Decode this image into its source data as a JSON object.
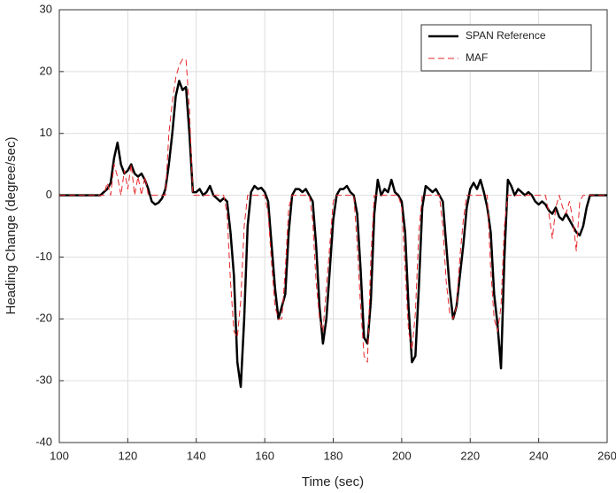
{
  "chart_data": {
    "type": "line",
    "xlabel": "Time (sec)",
    "ylabel": "Heading Change (degree/sec)",
    "xlim": [
      100,
      260
    ],
    "xticks": [
      100,
      120,
      140,
      160,
      180,
      200,
      220,
      240,
      260
    ],
    "ylim": [
      -40,
      30
    ],
    "yticks": [
      -40,
      -30,
      -20,
      -10,
      0,
      10,
      20,
      30
    ],
    "grid": true,
    "legend": "upper right",
    "x": [
      100,
      101,
      102,
      103,
      104,
      105,
      106,
      107,
      108,
      109,
      110,
      111,
      112,
      113,
      114,
      115,
      116,
      117,
      118,
      119,
      120,
      121,
      122,
      123,
      124,
      125,
      126,
      127,
      128,
      129,
      130,
      131,
      132,
      133,
      134,
      135,
      136,
      137,
      138,
      139,
      140,
      141,
      142,
      143,
      144,
      145,
      146,
      147,
      148,
      149,
      150,
      151,
      152,
      153,
      154,
      155,
      156,
      157,
      158,
      159,
      160,
      161,
      162,
      163,
      164,
      165,
      166,
      167,
      168,
      169,
      170,
      171,
      172,
      173,
      174,
      175,
      176,
      177,
      178,
      179,
      180,
      181,
      182,
      183,
      184,
      185,
      186,
      187,
      188,
      189,
      190,
      191,
      192,
      193,
      194,
      195,
      196,
      197,
      198,
      199,
      200,
      201,
      202,
      203,
      204,
      205,
      206,
      207,
      208,
      209,
      210,
      211,
      212,
      213,
      214,
      215,
      216,
      217,
      218,
      219,
      220,
      221,
      222,
      223,
      224,
      225,
      226,
      227,
      228,
      229,
      230,
      231,
      232,
      233,
      234,
      235,
      236,
      237,
      238,
      239,
      240,
      241,
      242,
      243,
      244,
      245,
      246,
      247,
      248,
      249,
      250,
      251,
      252,
      253,
      254,
      255,
      256,
      257,
      258,
      259,
      260
    ],
    "series": [
      {
        "name": "SPAN Reference",
        "color": "#000000",
        "linestyle": "solid",
        "width": 2.5,
        "values": [
          0,
          0,
          0,
          0,
          0,
          0,
          0,
          0,
          0,
          0,
          0,
          0,
          0,
          0.5,
          1,
          2,
          6,
          8.5,
          5,
          3.5,
          4,
          5,
          3.5,
          3,
          3.5,
          2.5,
          1,
          -1,
          -1.5,
          -1.2,
          -0.5,
          1,
          5,
          10,
          16,
          18.5,
          17,
          17.5,
          10,
          0.5,
          0.5,
          1,
          0,
          0.5,
          1.5,
          0,
          -0.5,
          -1,
          -0.5,
          -1,
          -6,
          -13,
          -27,
          -31,
          -20,
          -5,
          0.5,
          1.5,
          1,
          1.2,
          0.5,
          -1,
          -8,
          -15,
          -20,
          -18,
          -16,
          -6,
          0,
          1,
          1,
          0.5,
          1,
          0,
          -1,
          -8,
          -18,
          -24,
          -20,
          -12,
          -4,
          0,
          1,
          1,
          1.5,
          0.5,
          0,
          -3,
          -12,
          -23,
          -24,
          -17,
          -3,
          2.5,
          0,
          1,
          0.5,
          2.5,
          0.5,
          0,
          -1,
          -6,
          -18,
          -27,
          -26,
          -15,
          -2,
          1.5,
          1,
          0.5,
          1,
          0,
          -1,
          -8,
          -15,
          -20,
          -18,
          -13,
          -8,
          -2,
          1,
          2,
          1,
          2.5,
          0.5,
          -2,
          -6,
          -16,
          -21,
          -28,
          -10,
          2.5,
          1.5,
          0,
          1,
          0.5,
          0,
          0.5,
          0,
          -1,
          -1.5,
          -1,
          -1.5,
          -2.5,
          -3,
          -2,
          -3.5,
          -4,
          -3,
          -4,
          -5,
          -6,
          -6.5,
          -5,
          -2,
          0,
          0,
          0,
          0,
          0,
          0
        ]
      },
      {
        "name": "MAF",
        "color": "#e8262a",
        "linestyle": "dashed",
        "width": 1,
        "values": [
          0,
          0,
          0,
          0,
          0,
          0,
          0,
          0,
          0,
          0,
          0,
          0,
          0,
          0,
          2,
          0,
          5,
          3,
          0,
          4,
          1,
          5,
          0,
          3,
          0,
          3,
          0,
          0,
          0,
          0,
          0,
          0,
          10,
          15,
          19,
          21,
          22,
          22,
          14,
          0,
          0,
          0,
          0,
          0,
          0,
          0,
          0,
          0,
          0,
          -3,
          -14,
          -22,
          -23,
          -17,
          -5,
          0,
          0,
          0,
          0,
          0,
          0,
          -3,
          -11,
          -18,
          -20,
          -20,
          -12,
          -2,
          0,
          0,
          0,
          0,
          0,
          0,
          -4,
          -14,
          -20,
          -22,
          -15,
          -8,
          -1,
          0,
          0,
          0,
          0,
          0,
          0,
          -8,
          -18,
          -26,
          -27,
          -10,
          0,
          0,
          0,
          0,
          0,
          0,
          0,
          0,
          -2,
          -12,
          -22,
          -25,
          -19,
          -6,
          0,
          0,
          0,
          0,
          0,
          0,
          -5,
          -14,
          -19,
          -20,
          -18,
          -10,
          -4,
          0,
          0,
          0,
          0,
          0,
          0,
          0,
          -12,
          -20,
          -22,
          -18,
          -5,
          0,
          0,
          0,
          0,
          0,
          0,
          0,
          0,
          0,
          0,
          0,
          0,
          -3,
          -7,
          -2,
          0,
          -2,
          -3,
          -1,
          -4,
          -9,
          -1,
          0,
          0,
          0,
          0,
          0,
          0,
          0,
          0
        ]
      }
    ]
  }
}
